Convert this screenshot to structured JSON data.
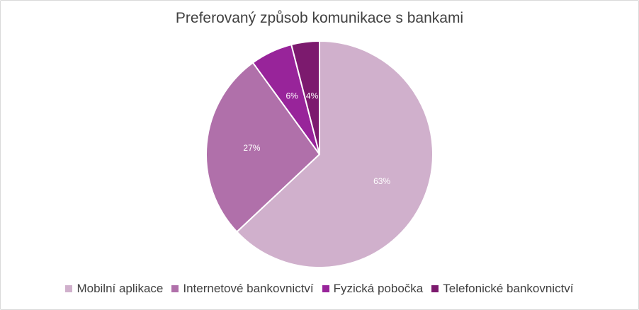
{
  "chart_data": {
    "type": "pie",
    "title": "Preferovaný způsob komunikace s bankami",
    "categories": [
      "Mobilní aplikace",
      "Internetové bankovnictví",
      "Fyzická pobočka",
      "Telefonické bankovnictví"
    ],
    "values": [
      63,
      27,
      6,
      4
    ],
    "data_labels": [
      "63%",
      "27%",
      "6%",
      "4%"
    ],
    "colors": [
      "#d0b0cc",
      "#b070aa",
      "#98249a",
      "#7c1a6e"
    ],
    "label_color": "#ffffff",
    "legend": "bottom"
  }
}
